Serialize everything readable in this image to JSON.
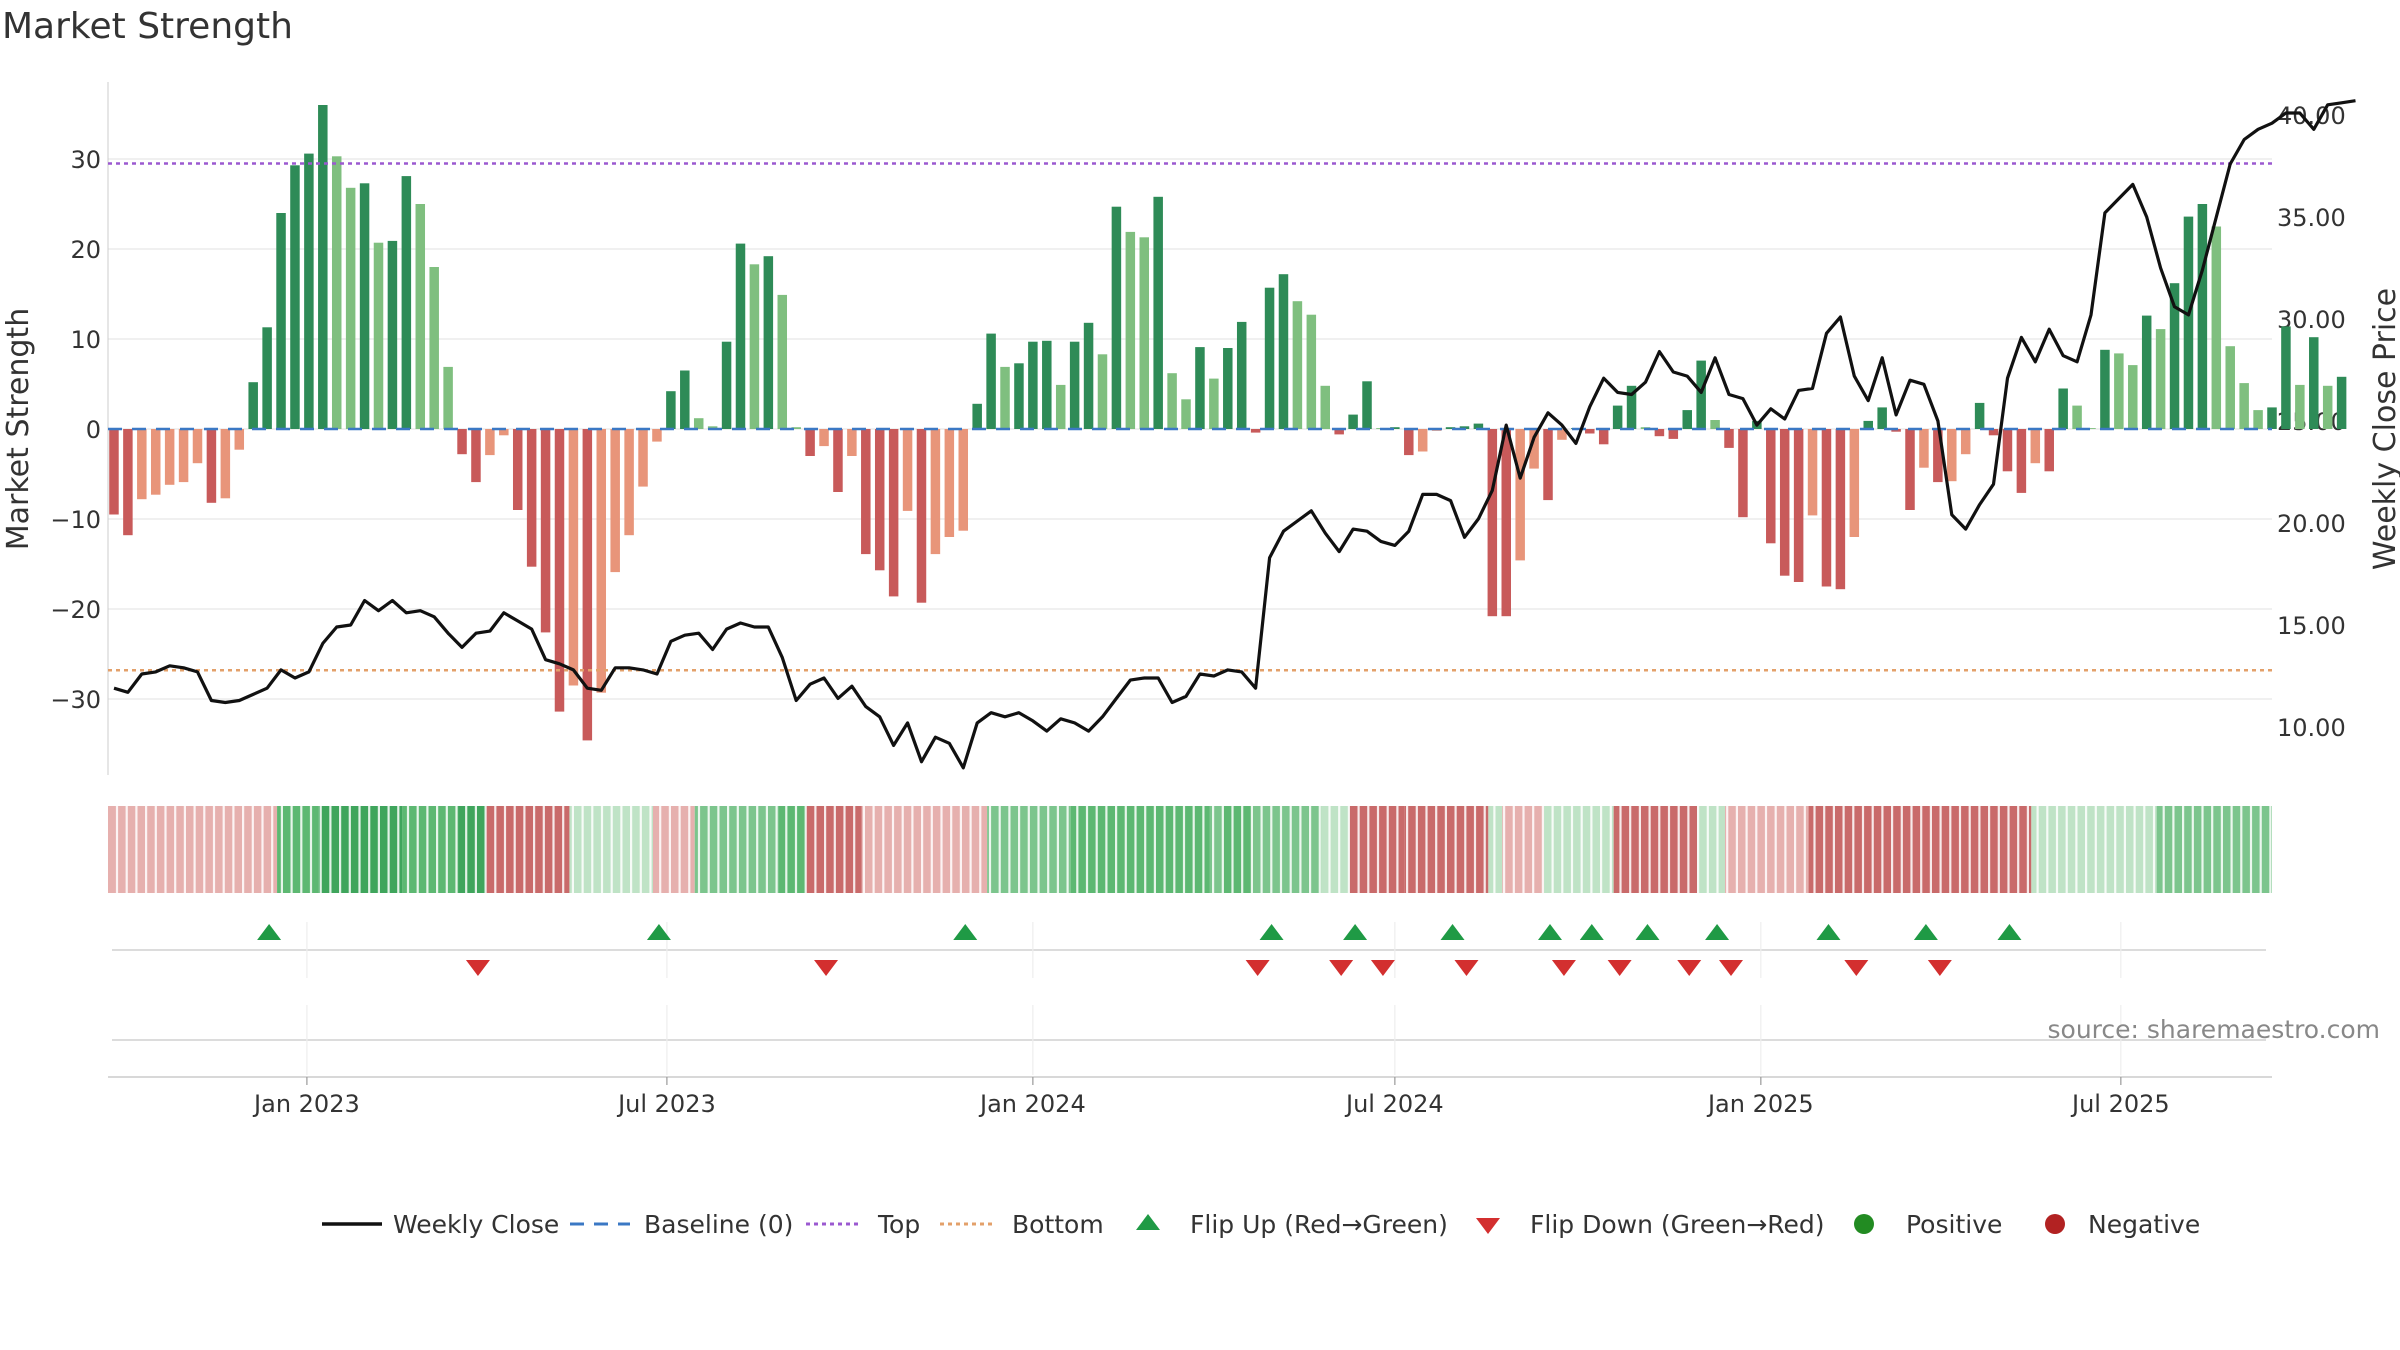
{
  "title": "Market Strength",
  "source": "source: sharemaestro.com",
  "colors": {
    "strong_green": "#2e8b57",
    "light_green": "#7fbf7f",
    "strong_red": "#c85a5a",
    "light_red": "#e8957a",
    "line": "#111111",
    "baseline": "#3b78c4",
    "top": "#9b59d0",
    "bottom": "#e3a06a",
    "flip_up": "#1f9a45",
    "flip_down": "#d32f2f",
    "positive": "#228b22",
    "negative": "#b22222"
  },
  "chart_data": {
    "type": "bar+line",
    "xlabel": "",
    "ylabel_left": "Market Strength",
    "ylabel_right": "Weekly Close Price",
    "ylim_left": [
      -39,
      39.5
    ],
    "ylim_right": [
      5.5,
      41
    ],
    "left_ticks": [
      30,
      20,
      10,
      0,
      -10,
      -20,
      -30
    ],
    "left_tick_labels": [
      "30",
      "20",
      "10",
      "0",
      "−10",
      "−20",
      "−30"
    ],
    "right_ticks": [
      40,
      35,
      30,
      25,
      20,
      15,
      10
    ],
    "right_tick_labels": [
      "40.00",
      "35.00",
      "30.00",
      "25.00",
      "20.00",
      "15.00",
      "10.00"
    ],
    "start_date": "2022-09-26",
    "week_step_days": 7,
    "x_range": [
      "2022-09-23",
      "2025-09-15"
    ],
    "date_ticks": [
      "2023-01-01",
      "2023-07-01",
      "2024-01-01",
      "2024-07-01",
      "2025-01-01",
      "2025-07-01"
    ],
    "date_tick_labels": [
      "Jan 2023",
      "Jul 2023",
      "Jan 2024",
      "Jul 2024",
      "Jan 2025",
      "Jul 2025"
    ],
    "top_level": 29.5,
    "bottom_level": -26.8,
    "baseline": 0,
    "strength": [
      -9.5,
      -11.8,
      -7.8,
      -7.3,
      -6.2,
      -5.9,
      -3.8,
      -8.2,
      -7.7,
      -2.3,
      5.2,
      11.3,
      24,
      29.3,
      30.6,
      36,
      30.3,
      26.8,
      27.3,
      20.7,
      20.9,
      28.1,
      25,
      18,
      6.9,
      -2.8,
      -5.9,
      -2.9,
      -0.7,
      -9,
      -15.3,
      -22.6,
      -31.4,
      -28.5,
      -34.6,
      -29.3,
      -15.9,
      -11.8,
      -6.4,
      -1.4,
      4.2,
      6.5,
      1.2,
      0.3,
      9.7,
      20.6,
      18.3,
      19.2,
      14.9,
      0.2,
      -3,
      -1.9,
      -7,
      -3,
      -13.9,
      -15.7,
      -18.6,
      -9.1,
      -19.3,
      -13.9,
      -12,
      -11.3,
      2.8,
      10.6,
      6.9,
      7.3,
      9.7,
      9.8,
      4.9,
      9.7,
      11.8,
      8.3,
      24.7,
      21.9,
      21.3,
      25.8,
      6.2,
      3.3,
      9.1,
      5.6,
      9,
      11.9,
      -0.4,
      15.7,
      17.2,
      14.2,
      12.7,
      4.8,
      -0.6,
      1.6,
      5.3,
      0.1,
      0.2,
      -2.9,
      -2.5,
      -0.2,
      0.2,
      0.3,
      0.6,
      -20.8,
      -20.8,
      -14.6,
      -4.4,
      -7.9,
      -1.2,
      0.1,
      -0.5,
      -1.7,
      2.6,
      4.8,
      0.2,
      -0.8,
      -1.1,
      2.1,
      7.6,
      1,
      -2.1,
      -9.8,
      0.9,
      -12.7,
      -16.3,
      -17,
      -9.6,
      -17.5,
      -17.8,
      -12,
      0.9,
      2.4,
      -0.3,
      -9,
      -4.3,
      -5.9,
      -5.8,
      -2.8,
      2.9,
      -0.7,
      -4.7,
      -7.1,
      -3.8,
      -4.7,
      4.5,
      2.6,
      0.1,
      8.8,
      8.4,
      7.1,
      12.6,
      11.1,
      16.2,
      23.6,
      25,
      22.5,
      9.2,
      5.1,
      2.1,
      2.4,
      11.4,
      4.9,
      10.2,
      4.8,
      5.8
    ],
    "close": [
      11.9,
      11.7,
      12.6,
      12.7,
      13,
      12.9,
      12.7,
      11.3,
      11.2,
      11.3,
      11.6,
      11.9,
      12.8,
      12.4,
      12.7,
      14.1,
      14.9,
      15,
      16.2,
      15.7,
      16.2,
      15.6,
      15.7,
      15.4,
      14.6,
      13.9,
      14.6,
      14.7,
      15.6,
      15.2,
      14.8,
      13.3,
      13.1,
      12.8,
      11.9,
      11.8,
      12.9,
      12.9,
      12.8,
      12.6,
      14.2,
      14.5,
      14.6,
      13.8,
      14.8,
      15.1,
      14.9,
      14.9,
      13.4,
      11.3,
      12.1,
      12.4,
      11.4,
      12,
      11,
      10.5,
      9.1,
      10.2,
      8.3,
      9.5,
      9.2,
      8,
      10.2,
      10.7,
      10.5,
      10.7,
      10.3,
      9.8,
      10.4,
      10.2,
      9.8,
      10.5,
      11.4,
      12.3,
      12.4,
      12.4,
      11.2,
      11.5,
      12.6,
      12.5,
      12.8,
      12.7,
      11.9,
      18.3,
      19.6,
      20.1,
      20.6,
      19.5,
      18.6,
      19.7,
      19.6,
      19.1,
      18.9,
      19.6,
      21.4,
      21.4,
      21.1,
      19.3,
      20.2,
      21.6,
      24.8,
      22.2,
      24.2,
      25.4,
      24.8,
      23.9,
      25.7,
      27.1,
      26.4,
      26.3,
      26.9,
      28.4,
      27.4,
      27.2,
      26.4,
      28.1,
      26.3,
      26.1,
      24.8,
      25.6,
      25.1,
      26.5,
      26.6,
      29.3,
      30.1,
      27.2,
      26,
      28.1,
      25.3,
      27,
      26.8,
      25,
      20.4,
      19.7,
      20.9,
      21.9,
      27.1,
      29.1,
      27.9,
      29.5,
      28.2,
      27.9,
      30.2,
      35.2,
      35.9,
      36.6,
      35,
      32.5,
      30.6,
      30.2,
      32.4,
      35,
      37.6,
      38.8,
      39.3,
      39.6,
      40.1,
      40.1,
      39.3,
      40.5,
      40.6,
      40.7
    ],
    "heat_blocks": [
      {
        "x1": "2022-09-23",
        "x2": "2022-12-17",
        "level": 2
      },
      {
        "x1": "2022-12-17",
        "x2": "2023-01-07",
        "level": 5
      },
      {
        "x1": "2023-01-07",
        "x2": "2023-02-18",
        "level": 6
      },
      {
        "x1": "2023-02-18",
        "x2": "2023-03-18",
        "level": 5
      },
      {
        "x1": "2023-03-18",
        "x2": "2023-04-01",
        "level": 6
      },
      {
        "x1": "2023-04-01",
        "x2": "2023-05-13",
        "level": 1
      },
      {
        "x1": "2023-05-13",
        "x2": "2023-06-24",
        "level": 3
      },
      {
        "x1": "2023-06-24",
        "x2": "2023-07-15",
        "level": 2
      },
      {
        "x1": "2023-07-15",
        "x2": "2023-08-26",
        "level": 4
      },
      {
        "x1": "2023-08-26",
        "x2": "2023-09-09",
        "level": 5
      },
      {
        "x1": "2023-09-09",
        "x2": "2023-10-07",
        "level": 1
      },
      {
        "x1": "2023-10-07",
        "x2": "2023-12-09",
        "level": 2
      },
      {
        "x1": "2023-12-09",
        "x2": "2024-01-20",
        "level": 4
      },
      {
        "x1": "2024-01-20",
        "x2": "2024-03-30",
        "level": 5
      },
      {
        "x1": "2024-03-30",
        "x2": "2024-04-06",
        "level": 4
      },
      {
        "x1": "2024-04-06",
        "x2": "2024-04-20",
        "level": 5
      },
      {
        "x1": "2024-04-20",
        "x2": "2024-05-25",
        "level": 4
      },
      {
        "x1": "2024-05-25",
        "x2": "2024-06-08",
        "level": 3
      },
      {
        "x1": "2024-06-08",
        "x2": "2024-07-06",
        "level": 1
      },
      {
        "x1": "2024-07-06",
        "x2": "2024-08-17",
        "level": 1
      },
      {
        "x1": "2024-08-17",
        "x2": "2024-08-24",
        "level": 3
      },
      {
        "x1": "2024-08-24",
        "x2": "2024-09-14",
        "level": 2
      },
      {
        "x1": "2024-09-14",
        "x2": "2024-10-19",
        "level": 3
      },
      {
        "x1": "2024-10-19",
        "x2": "2024-11-30",
        "level": 1
      },
      {
        "x1": "2024-11-30",
        "x2": "2024-12-14",
        "level": 3
      },
      {
        "x1": "2024-12-14",
        "x2": "2025-01-25",
        "level": 2
      },
      {
        "x1": "2025-01-25",
        "x2": "2025-05-17",
        "level": 1
      },
      {
        "x1": "2025-05-17",
        "x2": "2025-07-19",
        "level": 3
      },
      {
        "x1": "2025-07-19",
        "x2": "2025-09-15",
        "level": 4
      }
    ],
    "flip_up_dates": [
      "2022-12-13",
      "2023-06-27",
      "2023-11-28",
      "2024-04-30",
      "2024-06-11",
      "2024-07-30",
      "2024-09-17",
      "2024-10-08",
      "2024-11-05",
      "2024-12-10",
      "2025-02-04",
      "2025-03-25",
      "2025-05-06"
    ],
    "flip_down_dates": [
      "2023-03-28",
      "2023-09-19",
      "2024-04-23",
      "2024-06-04",
      "2024-06-25",
      "2024-08-06",
      "2024-09-24",
      "2024-10-22",
      "2024-11-26",
      "2024-12-17",
      "2025-02-18",
      "2025-04-01"
    ],
    "legend": [
      {
        "label": "Weekly Close",
        "kind": "line"
      },
      {
        "label": "Baseline (0)",
        "kind": "dash"
      },
      {
        "label": "Top",
        "kind": "dot-top"
      },
      {
        "label": "Bottom",
        "kind": "dot-bottom"
      },
      {
        "label": "Flip Up (Red→Green)",
        "kind": "tri-up"
      },
      {
        "label": "Flip Down (Green→Red)",
        "kind": "tri-down"
      },
      {
        "label": "Positive",
        "kind": "circle-pos"
      },
      {
        "label": "Negative",
        "kind": "circle-neg"
      }
    ],
    "grid": true,
    "legend_position": "bottom"
  }
}
